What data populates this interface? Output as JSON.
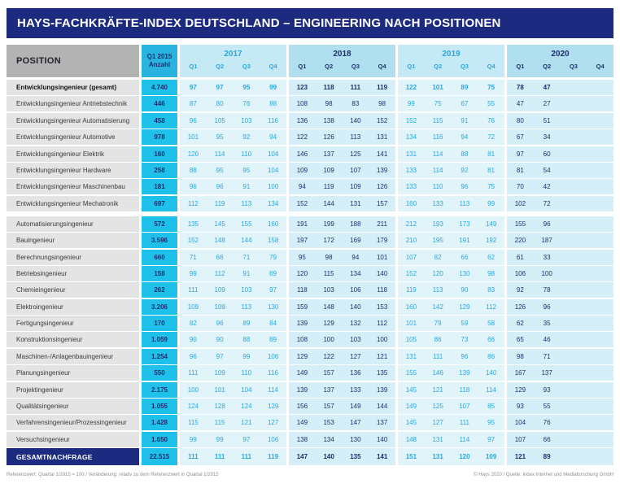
{
  "title": "HAYS-FACHKRÄFTE-INDEX DEUTSCHLAND – ENGINEERING NACH POSITIONEN",
  "colors": {
    "brand_navy": "#1c2b80",
    "accent_cyan": "#1fc0ea",
    "cyan_value_text": "#2aa7dc",
    "navy_value_text": "#1d2f6b",
    "group_light_header_bg": "#c6e9f6",
    "group_dark_header_bg": "#b0dff0",
    "group_light_cell_bg": "#e1f4fa",
    "group_dark_cell_bg": "#d5eef8",
    "position_header_bg": "#b3b3b3",
    "row_label_bg": "#e4e4e4"
  },
  "chart_data": {
    "type": "table",
    "title": "HAYS-FACHKRÄFTE-INDEX DEUTSCHLAND – ENGINEERING NACH POSITIONEN",
    "position_header": "POSITION",
    "anzahl_header_line1": "Q1 2015",
    "anzahl_header_line2": "Anzahl",
    "year_groups": [
      {
        "year": "2017",
        "quarters": [
          "Q1",
          "Q2",
          "Q3",
          "Q4"
        ],
        "tone": "light"
      },
      {
        "year": "2018",
        "quarters": [
          "Q1",
          "Q2",
          "Q3",
          "Q4"
        ],
        "tone": "dark"
      },
      {
        "year": "2019",
        "quarters": [
          "Q1",
          "Q2",
          "Q3",
          "Q4"
        ],
        "tone": "light"
      },
      {
        "year": "2020",
        "quarters": [
          "Q1",
          "Q2",
          "Q3",
          "Q4"
        ],
        "tone": "dark"
      }
    ],
    "rows": [
      {
        "label": "Entwicklungsingenieur (gesamt)",
        "anzahl": "4.740",
        "emphasis": true,
        "quarter_values": [
          97,
          97,
          95,
          99,
          123,
          118,
          111,
          119,
          122,
          101,
          89,
          75,
          78,
          47,
          null,
          null
        ]
      },
      {
        "label": "Entwicklungsingenieur Antriebstechnik",
        "anzahl": "446",
        "quarter_values": [
          87,
          80,
          76,
          88,
          108,
          98,
          83,
          98,
          99,
          75,
          67,
          55,
          47,
          27,
          null,
          null
        ]
      },
      {
        "label": "Entwicklungsingenieur Automatisierung",
        "anzahl": "458",
        "quarter_values": [
          96,
          105,
          103,
          116,
          136,
          138,
          140,
          152,
          152,
          115,
          91,
          76,
          80,
          51,
          null,
          null
        ]
      },
      {
        "label": "Entwicklungsingenieur Automotive",
        "anzahl": "978",
        "quarter_values": [
          101,
          95,
          92,
          94,
          122,
          126,
          113,
          131,
          134,
          116,
          94,
          72,
          67,
          34,
          null,
          null
        ]
      },
      {
        "label": "Entwicklungsingenieur Elektrik",
        "anzahl": "160",
        "quarter_values": [
          120,
          114,
          110,
          104,
          146,
          137,
          125,
          141,
          131,
          114,
          88,
          81,
          97,
          60,
          null,
          null
        ]
      },
      {
        "label": "Entwicklungsingenieur Hardware",
        "anzahl": "258",
        "quarter_values": [
          88,
          95,
          95,
          104,
          109,
          109,
          107,
          139,
          133,
          114,
          92,
          81,
          81,
          54,
          null,
          null
        ]
      },
      {
        "label": "Entwicklungsingenieur Maschinenbau",
        "anzahl": "181",
        "quarter_values": [
          96,
          96,
          91,
          100,
          94,
          119,
          109,
          126,
          133,
          110,
          96,
          75,
          70,
          42,
          null,
          null
        ]
      },
      {
        "label": "Entwicklungsingenieur Mechatronik",
        "anzahl": "697",
        "quarter_values": [
          112,
          119,
          113,
          134,
          152,
          144,
          131,
          157,
          160,
          133,
          113,
          99,
          102,
          72,
          null,
          null
        ]
      },
      {
        "label": "Automatisierungsingenieur",
        "anzahl": "572",
        "gap_before": true,
        "quarter_values": [
          135,
          145,
          155,
          160,
          191,
          199,
          188,
          211,
          212,
          193,
          173,
          149,
          155,
          96,
          null,
          null
        ]
      },
      {
        "label": "Bauingenieur",
        "anzahl": "3.596",
        "quarter_values": [
          152,
          148,
          144,
          158,
          197,
          172,
          169,
          179,
          210,
          195,
          191,
          192,
          220,
          187,
          null,
          null
        ]
      },
      {
        "label": "Berechnungsingenieur",
        "anzahl": "660",
        "quarter_values": [
          71,
          66,
          71,
          79,
          95,
          98,
          94,
          101,
          107,
          82,
          66,
          62,
          61,
          33,
          null,
          null
        ]
      },
      {
        "label": "Betriebsingenieur",
        "anzahl": "158",
        "quarter_values": [
          99,
          112,
          91,
          89,
          120,
          115,
          134,
          140,
          152,
          120,
          130,
          98,
          106,
          100,
          null,
          null
        ]
      },
      {
        "label": "Chemieingenieur",
        "anzahl": "262",
        "quarter_values": [
          111,
          109,
          103,
          97,
          118,
          103,
          106,
          118,
          119,
          113,
          90,
          83,
          92,
          78,
          null,
          null
        ]
      },
      {
        "label": "Elektroingenieur",
        "anzahl": "3.206",
        "quarter_values": [
          109,
          109,
          113,
          130,
          159,
          148,
          140,
          153,
          160,
          142,
          129,
          112,
          126,
          96,
          null,
          null
        ]
      },
      {
        "label": "Fertigungsingenieur",
        "anzahl": "170",
        "quarter_values": [
          82,
          96,
          89,
          84,
          139,
          129,
          132,
          112,
          101,
          79,
          59,
          58,
          62,
          35,
          null,
          null
        ]
      },
      {
        "label": "Konstruktionsingenieur",
        "anzahl": "1.059",
        "quarter_values": [
          90,
          90,
          88,
          89,
          108,
          100,
          103,
          100,
          105,
          86,
          73,
          66,
          65,
          46,
          null,
          null
        ]
      },
      {
        "label": "Maschinen-/Anlagenbauingenieur",
        "anzahl": "1.254",
        "quarter_values": [
          96,
          97,
          99,
          106,
          129,
          122,
          127,
          121,
          131,
          111,
          96,
          86,
          98,
          71,
          null,
          null
        ]
      },
      {
        "label": "Planungsingenieur",
        "anzahl": "550",
        "quarter_values": [
          111,
          109,
          110,
          116,
          149,
          157,
          136,
          135,
          155,
          146,
          139,
          140,
          167,
          137,
          null,
          null
        ]
      },
      {
        "label": "Projektingenieur",
        "anzahl": "2.175",
        "quarter_values": [
          100,
          101,
          104,
          114,
          139,
          137,
          133,
          139,
          145,
          121,
          118,
          114,
          129,
          93,
          null,
          null
        ]
      },
      {
        "label": "Qualitätsingenieur",
        "anzahl": "1.055",
        "quarter_values": [
          124,
          128,
          124,
          129,
          156,
          157,
          149,
          144,
          149,
          125,
          107,
          85,
          93,
          55,
          null,
          null
        ]
      },
      {
        "label": "Verfahrensingenieur/Prozessingenieur",
        "anzahl": "1.428",
        "quarter_values": [
          115,
          115,
          121,
          127,
          149,
          153,
          147,
          137,
          145,
          127,
          111,
          95,
          104,
          76,
          null,
          null
        ]
      },
      {
        "label": "Versuchsingenieur",
        "anzahl": "1.650",
        "quarter_values": [
          99,
          99,
          97,
          106,
          138,
          134,
          130,
          140,
          148,
          131,
          114,
          97,
          107,
          66,
          null,
          null
        ]
      }
    ],
    "total_row": {
      "label": "GESAMTNACHFRAGE",
      "anzahl": "22.515",
      "quarter_values": [
        111,
        111,
        111,
        119,
        147,
        140,
        135,
        141,
        151,
        131,
        120,
        109,
        121,
        89,
        null,
        null
      ]
    }
  },
  "footnotes": {
    "left": "Referenzwert: Quartal 1/2015 = 100 / Veränderung: relativ zu dem Referenzwert in Quartal 1/2015",
    "right": "© Hays 2020 / Quelle: index Internet und Mediaforschung GmbH"
  }
}
